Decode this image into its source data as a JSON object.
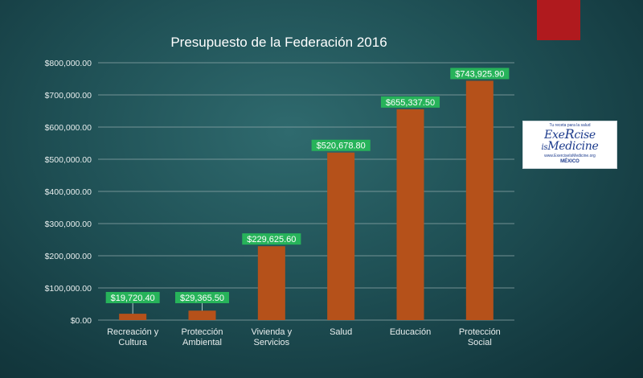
{
  "chart_data": {
    "type": "bar",
    "title": "Presupuesto de la Federación 2016",
    "categories": [
      [
        "Recreación y",
        "Cultura"
      ],
      [
        "Protección",
        "Ambiental"
      ],
      [
        "Vivienda y",
        "Servicios"
      ],
      [
        "Salud"
      ],
      [
        "Educación"
      ],
      [
        "Protección",
        "Social"
      ]
    ],
    "values": [
      19720.4,
      29365.5,
      229625.6,
      520678.8,
      655337.5,
      743925.9
    ],
    "data_labels": [
      "$19,720.40",
      "$29,365.50",
      "$229,625.60",
      "$520,678.80",
      "$655,337.50",
      "$743,925.90"
    ],
    "yticks": [
      0,
      100000,
      200000,
      300000,
      400000,
      500000,
      600000,
      700000,
      800000
    ],
    "ytick_labels": [
      "$0.00",
      "$100,000.00",
      "$200,000.00",
      "$300,000.00",
      "$400,000.00",
      "$500,000.00",
      "$600,000.00",
      "$700,000.00",
      "$800,000.00"
    ],
    "ylim": [
      0,
      800000
    ],
    "xlabel": "",
    "ylabel": "",
    "grid": true,
    "colors": {
      "bar": "#b5511a",
      "label_bg": "#27b35a",
      "grid": "#8fa7a9",
      "text": "#e8eeee",
      "title": "#ffffff"
    }
  },
  "logo": {
    "tagline": "Tu receta para la salud",
    "line1": "Exe",
    "line1_r": "R",
    "line1_end": "cise",
    "line2_is": "is",
    "line2": "Medicine",
    "url": "www.ExerciseIsMedicine.org",
    "country": "MÉXICO"
  }
}
